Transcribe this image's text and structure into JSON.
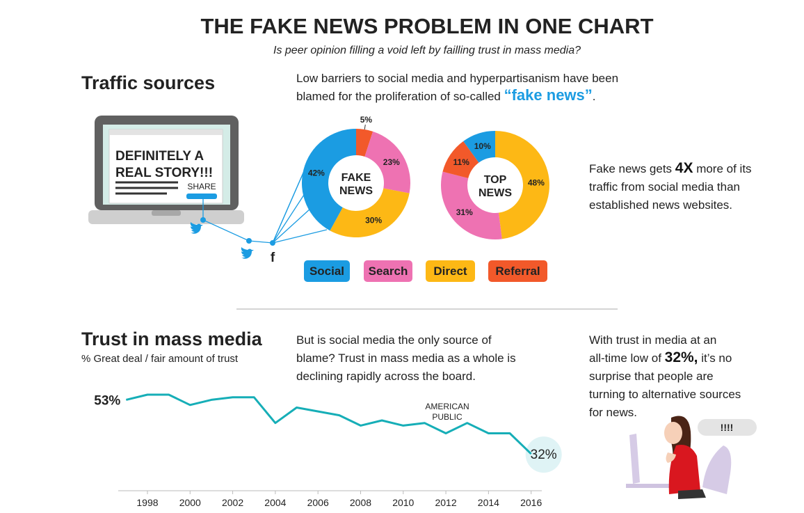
{
  "header": {
    "title": "THE FAKE NEWS PROBLEM IN ONE CHART",
    "subtitle": "Is peer opinion filling a void left by failling trust in mass media?"
  },
  "traffic": {
    "heading": "Traffic sources",
    "paragraph": [
      [
        "Low barriers to social media and hyperpartisanism have been"
      ],
      [
        "blamed for the proliferation of so-called ",
        {
          "highlight": "“fake news”"
        },
        "."
      ]
    ],
    "laptop": {
      "headline": [
        "DEFINITELY A",
        "REAL STORY!!!"
      ],
      "button": "SHARE"
    },
    "note": [
      [
        "Fake news gets ",
        {
          "strong": "4X"
        },
        " more of its"
      ],
      [
        "traffic from social media than"
      ],
      [
        "established news websites."
      ]
    ]
  },
  "legend": [
    {
      "name": "Social",
      "color": "#1b9ce2"
    },
    {
      "name": "Search",
      "color": "#ee72b2"
    },
    {
      "name": "Direct",
      "color": "#fdb815"
    },
    {
      "name": "Referral",
      "color": "#f2592a"
    }
  ],
  "trust": {
    "heading": "Trust in mass media",
    "subheading": "% Great deal / fair amount of trust",
    "paragraph": [
      [
        "But is social media the only source of"
      ],
      [
        "blame? Trust in mass media as a whole is"
      ],
      [
        "declining rapidly across the board."
      ]
    ],
    "note": [
      [
        "With trust in media at an"
      ],
      [
        "all-time low of ",
        {
          "strong": "32%,"
        },
        " it’s no"
      ],
      [
        "surprise that people are"
      ],
      [
        "turning to alternative sources"
      ],
      [
        "for news."
      ]
    ],
    "bubble": "!!!!"
  },
  "chart_data": [
    {
      "type": "pie",
      "center_label": [
        "FAKE",
        "NEWS"
      ],
      "values": [
        5,
        23,
        30,
        42
      ],
      "value_labels": [
        "5%",
        "23%",
        "30%",
        "42%"
      ],
      "colors": [
        "#f2592a",
        "#ee72b2",
        "#fdb815",
        "#1b9ce2"
      ]
    },
    {
      "type": "pie",
      "center_label": [
        "TOP",
        "NEWS"
      ],
      "values": [
        48,
        31,
        11,
        10
      ],
      "value_labels": [
        "48%",
        "31%",
        "11%",
        "10%"
      ],
      "colors": [
        "#fdb815",
        "#ee72b2",
        "#f2592a",
        "#1b9ce2"
      ]
    },
    {
      "type": "line",
      "annotation": [
        "AMERICAN",
        "PUBLIC"
      ],
      "color": "#16aeb7",
      "x": [
        1997,
        1998,
        1999,
        2000,
        2001,
        2002,
        2003,
        2004,
        2005,
        2007,
        2008,
        2009,
        2010,
        2011,
        2012,
        2013,
        2014,
        2015,
        2016
      ],
      "values": [
        53,
        55,
        55,
        51,
        53,
        54,
        54,
        44,
        50,
        47,
        43,
        45,
        43,
        44,
        40,
        44,
        40,
        40,
        32
      ],
      "value_labels": [
        "53%",
        null,
        null,
        null,
        null,
        null,
        null,
        null,
        null,
        null,
        null,
        null,
        null,
        null,
        null,
        null,
        null,
        null,
        "32%"
      ],
      "xlim": [
        1996.5,
        2016.5
      ],
      "xticks": [
        1998,
        2000,
        2002,
        2004,
        2006,
        2008,
        2010,
        2012,
        2014,
        2016
      ]
    }
  ]
}
